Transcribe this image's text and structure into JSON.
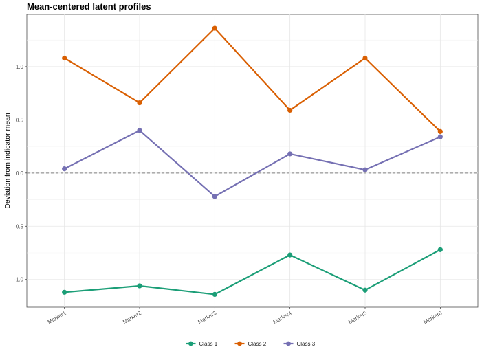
{
  "chart_data": {
    "type": "line",
    "title": "Mean-centered latent profiles",
    "xlabel": "",
    "ylabel": "Deviation from indicator mean",
    "categories": [
      "Marker1",
      "Marker2",
      "Marker3",
      "Marker4",
      "Marker5",
      "Marker6"
    ],
    "series": [
      {
        "name": "Class 1",
        "color": "#1b9e77",
        "values": [
          -1.12,
          -1.06,
          -1.14,
          -0.77,
          -1.1,
          -0.72
        ]
      },
      {
        "name": "Class 2",
        "color": "#d95f02",
        "values": [
          1.08,
          0.66,
          1.36,
          0.59,
          1.08,
          0.39
        ]
      },
      {
        "name": "Class 3",
        "color": "#7570b3",
        "values": [
          0.04,
          0.4,
          -0.22,
          0.18,
          0.03,
          0.34
        ]
      }
    ],
    "ylim": [
      -1.26,
      1.49
    ],
    "yticks": [
      -1.0,
      -0.5,
      0.0,
      0.5,
      1.0
    ],
    "ytick_labels": [
      "-1.0",
      "-0.5",
      "0.0",
      "0.5",
      "1.0"
    ],
    "reference_line": {
      "y": 0,
      "style": "dashed",
      "color": "#808080"
    },
    "grid": true,
    "legend": "bottom"
  }
}
